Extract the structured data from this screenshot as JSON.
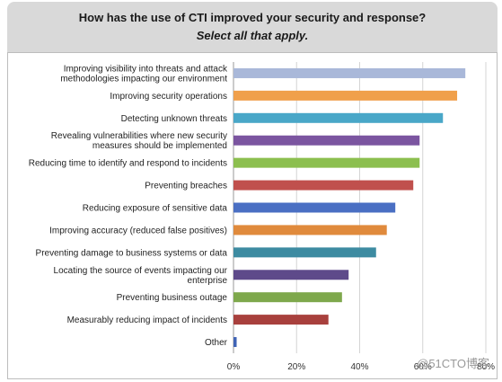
{
  "chart_data": {
    "type": "bar",
    "orientation": "horizontal",
    "title": "How has the use of CTI improved your security and response?",
    "subtitle": "Select all that apply.",
    "categories": [
      "Improving visibility into threats and attack methodologies impacting our environment",
      "Improving security operations",
      "Detecting unknown threats",
      "Revealing vulnerabilities where new security measures should be implemented",
      "Reducing time to identify and respond to incidents",
      "Preventing breaches",
      "Reducing exposure of sensitive data",
      "Improving accuracy (reduced false positives)",
      "Preventing damage to business systems or data",
      "Locating the source of events impacting our enterprise",
      "Preventing business outage",
      "Measurably reducing impact of incidents",
      "Other"
    ],
    "label_lines": [
      [
        "Improving visibility into threats and attack",
        "methodologies impacting our environment"
      ],
      [
        "Improving security operations"
      ],
      [
        "Detecting unknown threats"
      ],
      [
        "Revealing vulnerabilities where new security",
        "measures should be implemented"
      ],
      [
        "Reducing time to identify and respond to incidents"
      ],
      [
        "Preventing breaches"
      ],
      [
        "Reducing exposure of sensitive data"
      ],
      [
        "Improving accuracy (reduced false positives)"
      ],
      [
        "Preventing damage to business systems or data"
      ],
      [
        "Locating the source of events impacting our",
        "enterprise"
      ],
      [
        "Preventing business outage"
      ],
      [
        "Measurably reducing impact of incidents"
      ],
      [
        "Other"
      ]
    ],
    "values": [
      73.5,
      70.9,
      66.4,
      59.0,
      59.0,
      57.0,
      51.3,
      48.6,
      45.2,
      36.5,
      34.4,
      30.1,
      1.0
    ],
    "colors": [
      "#a9b8d9",
      "#f0a04b",
      "#49a7c8",
      "#7b55a0",
      "#8cbf4f",
      "#c0504d",
      "#4a6fc3",
      "#e08a3c",
      "#3d8ba1",
      "#5e4a8a",
      "#7ea84c",
      "#a8403d",
      "#3f63b5"
    ],
    "xlim": [
      0,
      80
    ],
    "xticks": [
      "0%",
      "20%",
      "40%",
      "60%",
      "80%"
    ],
    "grid": true,
    "xlabel": "",
    "ylabel": ""
  },
  "watermark": "@51CTO博客"
}
